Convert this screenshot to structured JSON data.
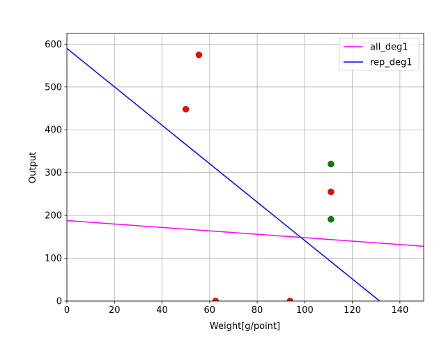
{
  "chart_data": {
    "type": "scatter",
    "title": "",
    "xlabel": "Weight[g/point]",
    "ylabel": "Output",
    "xlim": [
      0,
      150
    ],
    "ylim": [
      0,
      625
    ],
    "x_ticks": [
      0,
      20,
      40,
      60,
      80,
      100,
      120,
      140
    ],
    "y_ticks": [
      0,
      100,
      200,
      300,
      400,
      500,
      600
    ],
    "grid": true,
    "legend_position": "top-right",
    "points": [
      {
        "x": 55.5,
        "y": 575,
        "color": "red"
      },
      {
        "x": 50,
        "y": 448,
        "color": "red"
      },
      {
        "x": 111,
        "y": 320,
        "color": "green"
      },
      {
        "x": 111,
        "y": 255,
        "color": "red"
      },
      {
        "x": 111,
        "y": 191,
        "color": "green"
      },
      {
        "x": 62.5,
        "y": 0,
        "color": "red"
      },
      {
        "x": 93.8,
        "y": 0,
        "color": "red"
      }
    ],
    "lines": [
      {
        "name": "all_deg1",
        "color": "#ff00ff",
        "x": [
          0,
          150
        ],
        "y": [
          188,
          128
        ]
      },
      {
        "name": "rep_deg1",
        "color": "#0000ff",
        "x": [
          0,
          131.5
        ],
        "y": [
          590,
          0
        ]
      }
    ]
  },
  "colors": {
    "red": "#ff0000",
    "green": "#008000",
    "grid": "#b0b0b0"
  }
}
